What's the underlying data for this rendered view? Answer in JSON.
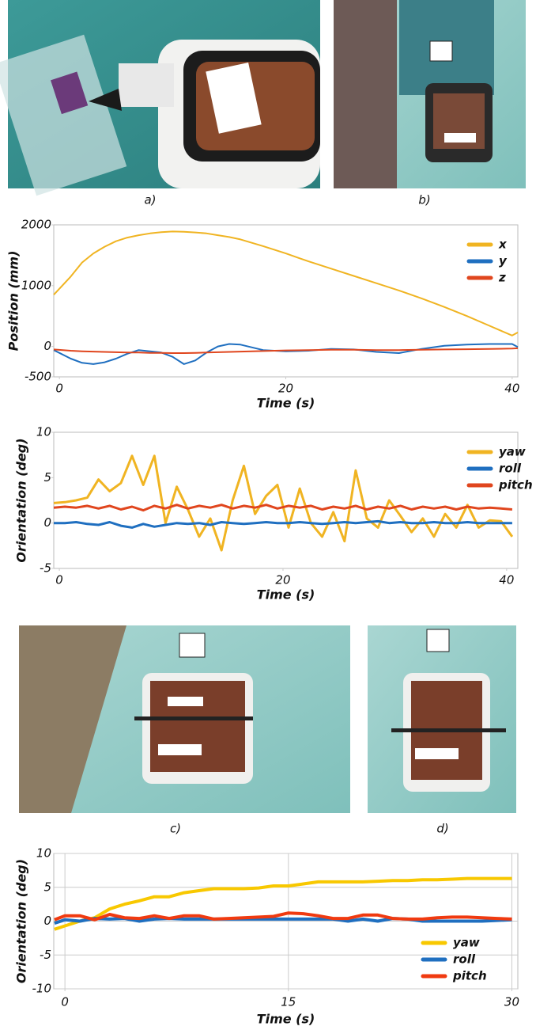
{
  "panels": [
    {
      "label": "a)"
    },
    {
      "label": "b)"
    },
    {
      "label": "c)"
    },
    {
      "label": "d)"
    }
  ],
  "chart_data": [
    {
      "type": "line",
      "xlabel": "Time (s)",
      "ylabel": "Position (mm)",
      "x": [
        -0.5,
        1,
        2,
        3,
        4,
        5,
        6,
        7,
        8,
        9,
        10,
        11,
        12,
        13,
        14,
        15,
        16,
        18,
        20,
        22,
        24,
        26,
        28,
        30,
        32,
        34,
        36,
        38,
        40,
        40.5
      ],
      "series": [
        {
          "name": "x",
          "color": "#f0b422",
          "values": [
            850,
            1150,
            1380,
            1530,
            1640,
            1730,
            1790,
            1830,
            1860,
            1880,
            1890,
            1885,
            1875,
            1860,
            1830,
            1800,
            1760,
            1650,
            1530,
            1400,
            1280,
            1160,
            1040,
            920,
            790,
            650,
            500,
            340,
            180,
            230
          ]
        },
        {
          "name": "y",
          "color": "#1f6fc0",
          "values": [
            -60,
            -200,
            -270,
            -290,
            -260,
            -200,
            -120,
            -60,
            -80,
            -100,
            -170,
            -290,
            -230,
            -100,
            0,
            40,
            30,
            -60,
            -80,
            -70,
            -40,
            -50,
            -90,
            -110,
            -40,
            10,
            30,
            40,
            40,
            -10
          ]
        },
        {
          "name": "z",
          "color": "#e0461e",
          "values": [
            -50,
            -70,
            -80,
            -85,
            -90,
            -95,
            -100,
            -100,
            -105,
            -105,
            -110,
            -110,
            -105,
            -100,
            -95,
            -90,
            -85,
            -75,
            -65,
            -60,
            -55,
            -55,
            -60,
            -60,
            -55,
            -50,
            -45,
            -40,
            -35,
            -30
          ]
        }
      ],
      "xlim": [
        -0.5,
        40.5
      ],
      "ylim": [
        -500,
        2000
      ],
      "xticks": [
        0,
        20,
        40
      ],
      "yticks": [
        -500,
        0,
        1000,
        2000
      ],
      "legend": "upper right",
      "grid": false,
      "line_width": 2
    },
    {
      "type": "line",
      "xlabel": "Time (s)",
      "ylabel": "Orientation (deg)",
      "x": [
        -0.5,
        0.5,
        1.5,
        2.5,
        3.5,
        4.5,
        5.5,
        6.5,
        7.5,
        8.5,
        9.5,
        10.5,
        11.5,
        12.5,
        13.5,
        14.5,
        15.5,
        16.5,
        17.5,
        18.5,
        19.5,
        20.5,
        21.5,
        22.5,
        23.5,
        24.5,
        25.5,
        26.5,
        27.5,
        28.5,
        29.5,
        30.5,
        31.5,
        32.5,
        33.5,
        34.5,
        35.5,
        36.5,
        37.5,
        38.5,
        39.5,
        40.5
      ],
      "series": [
        {
          "name": "yaw",
          "color": "#f0b422",
          "values": [
            2.2,
            2.3,
            2.5,
            2.8,
            4.8,
            3.5,
            4.4,
            7.4,
            4.2,
            7.4,
            0,
            4,
            1.5,
            -1.5,
            0.5,
            -3,
            2.5,
            6.3,
            1,
            3,
            4.2,
            -0.5,
            3.8,
            0,
            -1.5,
            1.2,
            -2,
            5.8,
            0.5,
            -0.5,
            2.5,
            0.8,
            -1,
            0.5,
            -1.5,
            1,
            -0.5,
            2,
            -0.5,
            0.3,
            0.2,
            -1.5
          ]
        },
        {
          "name": "roll",
          "color": "#1f6fc0",
          "values": [
            0,
            0,
            0.1,
            -0.1,
            -0.2,
            0.1,
            -0.3,
            -0.5,
            -0.1,
            -0.4,
            -0.2,
            0,
            -0.1,
            0,
            -0.2,
            0.1,
            0,
            -0.1,
            0,
            0.1,
            0,
            0,
            0.1,
            0,
            -0.1,
            0,
            0.1,
            0,
            0.1,
            0.2,
            0,
            0.1,
            0,
            0,
            0.1,
            0,
            0,
            0.1,
            0,
            0,
            0,
            0
          ]
        },
        {
          "name": "pitch",
          "color": "#e0461e",
          "values": [
            1.7,
            1.8,
            1.7,
            1.9,
            1.6,
            1.9,
            1.5,
            1.8,
            1.4,
            1.9,
            1.6,
            2.0,
            1.6,
            1.9,
            1.7,
            2.0,
            1.6,
            1.9,
            1.7,
            2.0,
            1.6,
            1.9,
            1.7,
            1.9,
            1.5,
            1.8,
            1.6,
            1.9,
            1.5,
            1.8,
            1.6,
            1.9,
            1.5,
            1.8,
            1.6,
            1.8,
            1.5,
            1.8,
            1.6,
            1.7,
            1.6,
            1.5
          ]
        }
      ],
      "xlim": [
        -0.5,
        41
      ],
      "ylim": [
        -5,
        10
      ],
      "xticks": [
        0,
        20,
        40
      ],
      "yticks": [
        -5,
        0,
        5,
        10
      ],
      "legend": "upper right",
      "grid": false,
      "line_width": 3
    },
    {
      "type": "line",
      "xlabel": "Time (s)",
      "ylabel": "Orientation (deg)",
      "x": [
        -0.7,
        0,
        1,
        2,
        3,
        4,
        5,
        6,
        7,
        8,
        9,
        10,
        11,
        12,
        13,
        14,
        15,
        16,
        17,
        18,
        19,
        20,
        21,
        22,
        23,
        24,
        25,
        26,
        27,
        28,
        29,
        30
      ],
      "series": [
        {
          "name": "yaw",
          "color": "#f8c800",
          "values": [
            -1.2,
            -0.7,
            0,
            0.5,
            1.8,
            2.5,
            3,
            3.6,
            3.6,
            4.2,
            4.5,
            4.8,
            4.8,
            4.8,
            4.9,
            5.2,
            5.2,
            5.5,
            5.8,
            5.8,
            5.8,
            5.8,
            5.9,
            6,
            6,
            6.1,
            6.1,
            6.2,
            6.3,
            6.3,
            6.3,
            6.3
          ]
        },
        {
          "name": "roll",
          "color": "#1f6fc0",
          "values": [
            -0.3,
            0.2,
            0,
            0.4,
            0.3,
            0.4,
            0,
            0.3,
            0.4,
            0.3,
            0.3,
            0.3,
            0.3,
            0.3,
            0.3,
            0.3,
            0.3,
            0.3,
            0.3,
            0.3,
            0,
            0.3,
            0,
            0.4,
            0.3,
            0,
            0,
            0,
            0,
            0,
            0.1,
            0.2
          ]
        },
        {
          "name": "pitch",
          "color": "#f03a10",
          "values": [
            0.2,
            0.8,
            0.8,
            0.2,
            1.0,
            0.5,
            0.4,
            0.8,
            0.4,
            0.8,
            0.8,
            0.3,
            0.4,
            0.5,
            0.6,
            0.7,
            1.2,
            1.1,
            0.8,
            0.4,
            0.4,
            0.9,
            0.9,
            0.4,
            0.3,
            0.3,
            0.5,
            0.6,
            0.6,
            0.5,
            0.4,
            0.3
          ]
        }
      ],
      "xlim": [
        -0.75,
        30.4
      ],
      "ylim": [
        -10,
        10
      ],
      "xticks": [
        0,
        15,
        30
      ],
      "yticks": [
        -10,
        -5,
        0,
        5,
        10
      ],
      "legend": "lower right",
      "grid": true,
      "line_width": 4
    }
  ]
}
